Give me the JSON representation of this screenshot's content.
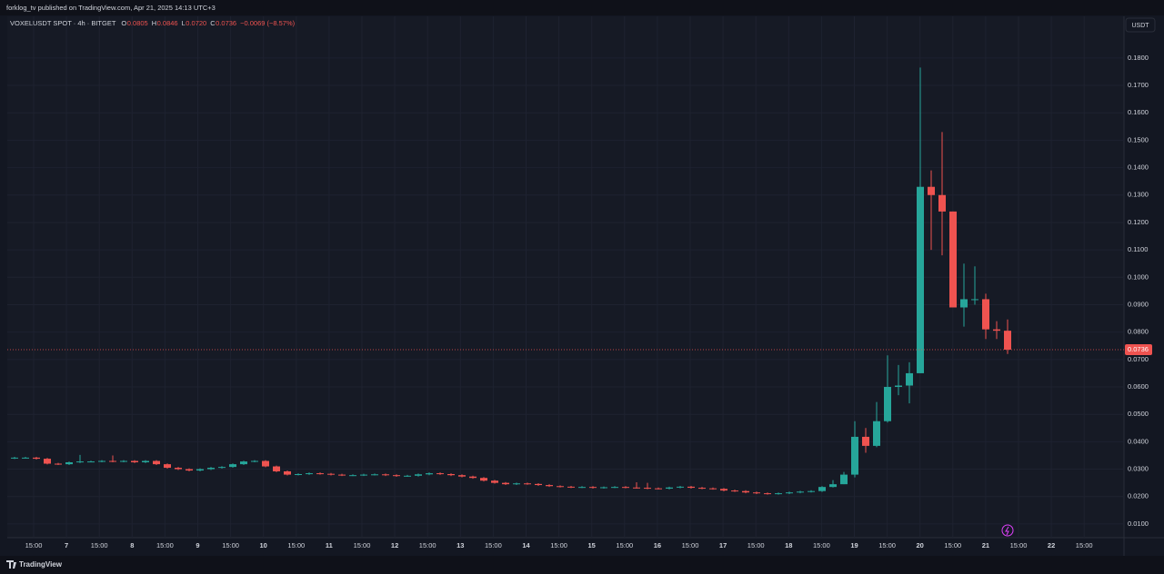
{
  "header": {
    "publisher": "forklog_tv published on TradingView.com, Apr 21, 2025 14:13 UTC+3"
  },
  "chart_data": {
    "type": "candlestick",
    "symbol": "VOXELUSDT SPOT · 4h · BITGET",
    "ohlc_labels": [
      "O",
      "H",
      "L",
      "C"
    ],
    "ohlc_values": [
      0.0805,
      0.0846,
      {
        "value": 0.072,
        "label": "0.0720"
      },
      0.0736
    ],
    "change": "−0.0069 (−8.57%)",
    "currency": "USDT",
    "last_price": 0.0736,
    "up_color": "#26a69a",
    "down_color": "#ef5350",
    "grid": true,
    "ylim": [
      0.005,
      0.1952
    ],
    "yticks": [
      {
        "value": 0.01,
        "label": "0.0100"
      },
      {
        "value": 0.02,
        "label": "0.0200"
      },
      {
        "value": 0.03,
        "label": "0.0300"
      },
      {
        "value": 0.04,
        "label": "0.0400"
      },
      {
        "value": 0.05,
        "label": "0.0500"
      },
      {
        "value": 0.06,
        "label": "0.0600"
      },
      {
        "value": 0.07,
        "label": "0.0700"
      },
      {
        "value": 0.08,
        "label": "0.0800"
      },
      {
        "value": 0.09,
        "label": "0.0900"
      },
      {
        "value": 0.1,
        "label": "0.1000"
      },
      {
        "value": 0.11,
        "label": "0.1100"
      },
      {
        "value": 0.12,
        "label": "0.1200"
      },
      {
        "value": 0.13,
        "label": "0.1300"
      },
      {
        "value": 0.14,
        "label": "0.1400"
      },
      {
        "value": 0.15,
        "label": "0.1500"
      },
      {
        "value": 0.16,
        "label": "0.1600"
      },
      {
        "value": 0.17,
        "label": "0.1700"
      },
      {
        "value": 0.18,
        "label": "0.1800"
      }
    ],
    "xticks": [
      "15:00",
      "7",
      "15:00",
      "8",
      "15:00",
      "9",
      "15:00",
      "10",
      "15:00",
      "11",
      "15:00",
      "12",
      "15:00",
      "13",
      "15:00",
      "14",
      "15:00",
      "15",
      "15:00",
      "16",
      "15:00",
      "17",
      "15:00",
      "18",
      "15:00",
      "19",
      "15:00",
      "20",
      "15:00",
      "21",
      "15:00",
      "22",
      "15:00"
    ],
    "open": [
      0.034,
      0.0342,
      0.0342,
      0.0338,
      0.032,
      0.0318,
      0.0325,
      0.0328,
      0.0328,
      0.033,
      0.0328,
      0.033,
      0.0325,
      0.033,
      0.0318,
      0.0305,
      0.03,
      0.0295,
      0.03,
      0.0305,
      0.0308,
      0.0318,
      0.0328,
      0.033,
      0.031,
      0.0292,
      0.028,
      0.0282,
      0.0285,
      0.0283,
      0.028,
      0.0278,
      0.0278,
      0.028,
      0.0281,
      0.0278,
      0.0275,
      0.0276,
      0.0281,
      0.0285,
      0.0282,
      0.0278,
      0.0273,
      0.0268,
      0.0258,
      0.025,
      0.0245,
      0.0248,
      0.0246,
      0.0242,
      0.0238,
      0.0236,
      0.0234,
      0.0235,
      0.0232,
      0.0234,
      0.0235,
      0.0233,
      0.0232,
      0.023,
      0.0229,
      0.0233,
      0.0236,
      0.0232,
      0.023,
      0.0228,
      0.0222,
      0.022,
      0.0215,
      0.0212,
      0.021,
      0.0212,
      0.0215,
      0.0218,
      0.022,
      0.0235,
      0.0245,
      0.028,
      0.0418,
      0.0385,
      0.0475,
      0.06,
      0.0605,
      0.065,
      0.133,
      0.13,
      0.124,
      0.089,
      0.092,
      0.092,
      0.081,
      0.0805
    ],
    "high": [
      0.0345,
      0.0345,
      0.0345,
      0.0341,
      0.0323,
      0.0328,
      0.0352,
      0.0331,
      0.0333,
      0.035,
      0.0333,
      0.0333,
      0.0333,
      0.0333,
      0.0321,
      0.0308,
      0.0303,
      0.0303,
      0.0308,
      0.0311,
      0.0321,
      0.0331,
      0.0333,
      0.0333,
      0.0313,
      0.0295,
      0.0285,
      0.0288,
      0.0288,
      0.0286,
      0.0283,
      0.0281,
      0.0283,
      0.0284,
      0.0284,
      0.0281,
      0.0279,
      0.0284,
      0.0288,
      0.0288,
      0.0285,
      0.0281,
      0.0276,
      0.0271,
      0.0261,
      0.0253,
      0.0251,
      0.0251,
      0.0249,
      0.0245,
      0.0241,
      0.0239,
      0.0238,
      0.0238,
      0.0237,
      0.0238,
      0.0238,
      0.0252,
      0.025,
      0.0233,
      0.0236,
      0.0239,
      0.0239,
      0.0235,
      0.0233,
      0.0231,
      0.0225,
      0.0223,
      0.0218,
      0.0215,
      0.0215,
      0.0218,
      0.0221,
      0.0223,
      0.0238,
      0.026,
      0.029,
      0.0475,
      0.045,
      0.0545,
      0.0715,
      0.068,
      0.069,
      0.1765,
      0.139,
      0.153,
      0.124,
      0.105,
      0.104,
      0.094,
      0.084,
      0.0846
    ],
    "low": [
      0.0337,
      0.0339,
      0.0335,
      0.0317,
      0.0315,
      0.0315,
      0.0322,
      0.0325,
      0.0325,
      0.0325,
      0.0325,
      0.0322,
      0.0322,
      0.0315,
      0.0302,
      0.0297,
      0.0292,
      0.0292,
      0.0297,
      0.0302,
      0.0305,
      0.0315,
      0.0325,
      0.0307,
      0.0289,
      0.0277,
      0.0277,
      0.0279,
      0.028,
      0.0277,
      0.0275,
      0.0275,
      0.0275,
      0.0277,
      0.0275,
      0.0272,
      0.0272,
      0.0273,
      0.0278,
      0.0279,
      0.0275,
      0.027,
      0.0265,
      0.0255,
      0.0247,
      0.0242,
      0.0242,
      0.0243,
      0.0239,
      0.0235,
      0.0233,
      0.0231,
      0.0231,
      0.0229,
      0.0229,
      0.0231,
      0.023,
      0.0229,
      0.0227,
      0.0226,
      0.0226,
      0.023,
      0.0229,
      0.0227,
      0.0225,
      0.0219,
      0.0217,
      0.0212,
      0.0209,
      0.0207,
      0.0207,
      0.0209,
      0.0212,
      0.0215,
      0.0217,
      0.0233,
      0.0245,
      0.027,
      0.036,
      0.038,
      0.047,
      0.057,
      0.054,
      0.065,
      0.11,
      0.108,
      0.089,
      0.082,
      0.09,
      0.0775,
      0.0775,
      0.072
    ],
    "close": [
      0.0342,
      0.0342,
      0.0338,
      0.032,
      0.0318,
      0.0325,
      0.0328,
      0.0328,
      0.033,
      0.0328,
      0.033,
      0.0325,
      0.033,
      0.0318,
      0.0305,
      0.03,
      0.0295,
      0.03,
      0.0305,
      0.0308,
      0.0318,
      0.0328,
      0.033,
      0.031,
      0.0292,
      0.028,
      0.0282,
      0.0285,
      0.0283,
      0.028,
      0.0278,
      0.0278,
      0.028,
      0.0281,
      0.0278,
      0.0275,
      0.0276,
      0.0281,
      0.0285,
      0.0282,
      0.0278,
      0.0273,
      0.0268,
      0.0258,
      0.025,
      0.0245,
      0.0248,
      0.0246,
      0.0242,
      0.0238,
      0.0236,
      0.0234,
      0.0235,
      0.0232,
      0.0234,
      0.0235,
      0.0233,
      0.0232,
      0.023,
      0.0229,
      0.0233,
      0.0236,
      0.0232,
      0.023,
      0.0228,
      0.0222,
      0.022,
      0.0215,
      0.0212,
      0.021,
      0.0212,
      0.0215,
      0.0218,
      0.022,
      0.0235,
      0.0245,
      0.028,
      0.0418,
      0.0385,
      0.0475,
      0.06,
      0.0605,
      0.065,
      0.133,
      0.13,
      0.124,
      0.089,
      0.092,
      0.092,
      0.081,
      0.0805,
      0.0736
    ]
  },
  "footer": {
    "brand": "TradingView"
  }
}
